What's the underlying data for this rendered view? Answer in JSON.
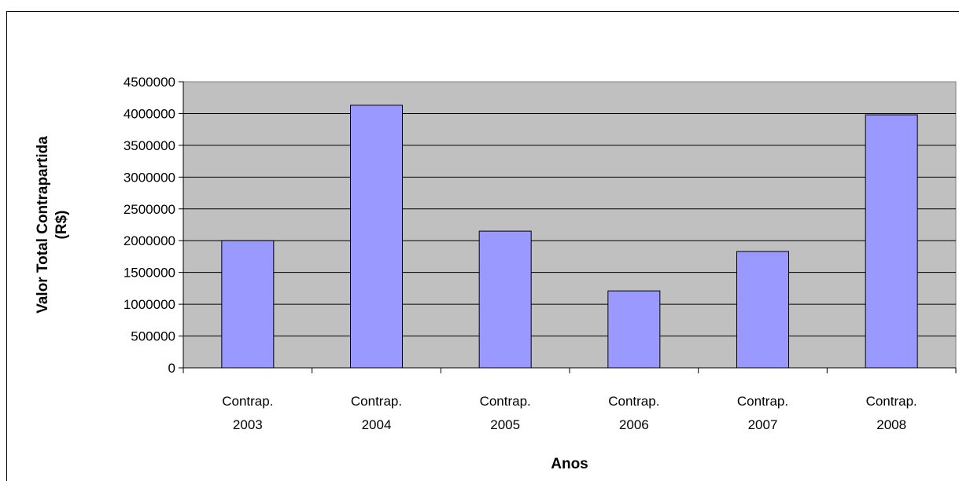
{
  "chart_data": {
    "type": "bar",
    "x_label": "Anos",
    "y_label": "Valor Total Contrapartida (R$)",
    "categories": [
      "Contrap. 2003",
      "Contrap. 2004",
      "Contrap. 2005",
      "Contrap. 2006",
      "Contrap. 2007",
      "Contrap. 2008"
    ],
    "values": [
      2000000,
      4130000,
      2150000,
      1210000,
      1830000,
      3980000
    ],
    "color": "#9999ff",
    "ylim": [
      0,
      4500000
    ],
    "yticks": [
      0,
      500000,
      1000000,
      1500000,
      2000000,
      2500000,
      3000000,
      3500000,
      4000000,
      4500000
    ],
    "grid": true
  }
}
